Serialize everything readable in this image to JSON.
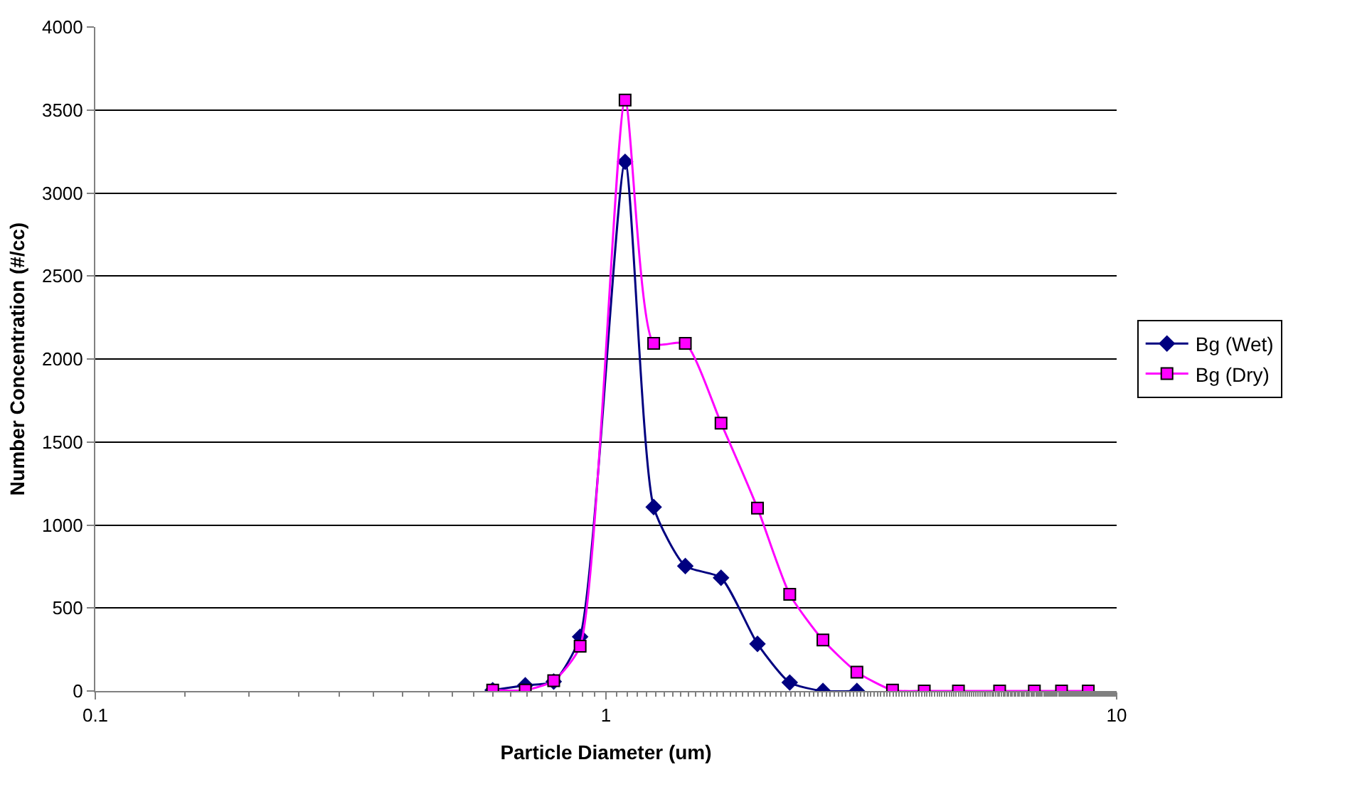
{
  "chart_data": {
    "type": "line",
    "xlabel": "Particle Diameter (um)",
    "ylabel": "Number Concentration (#/cc)",
    "x": [
      0.6,
      0.695,
      0.79,
      0.89,
      1.09,
      1.24,
      1.43,
      1.68,
      1.98,
      2.29,
      2.66,
      3.1,
      3.64,
      4.2,
      4.9,
      5.9,
      6.9,
      7.8,
      8.8
    ],
    "series": [
      {
        "name": "Bg (Wet)",
        "color": "#000080",
        "marker": "diamond",
        "values": [
          5,
          34,
          57,
          327,
          3188,
          1108,
          753,
          682,
          284,
          51,
          0,
          0,
          null,
          null,
          null,
          null,
          null,
          null,
          null
        ]
      },
      {
        "name": "Bg (Dry)",
        "color": "#ff00ff",
        "marker": "square",
        "values": [
          5,
          5,
          62,
          270,
          3560,
          2094,
          2094,
          1614,
          1102,
          582,
          307,
          114,
          5,
          0,
          0,
          0,
          0,
          0,
          0
        ]
      }
    ],
    "log": "x",
    "xlim": [
      0.1,
      10
    ],
    "xticks": [
      0.1,
      1,
      10
    ],
    "ylim": [
      0,
      4000
    ],
    "yticks": [
      0,
      500,
      1000,
      1500,
      2000,
      2500,
      3000,
      3500,
      4000
    ],
    "grid": "y",
    "legend": "right"
  }
}
